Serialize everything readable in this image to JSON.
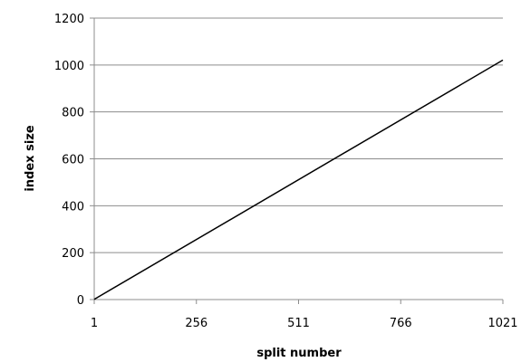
{
  "chart_data": {
    "type": "line",
    "title": "",
    "xlabel": "split number",
    "ylabel": "index size",
    "x_ticks": [
      1,
      256,
      511,
      766,
      1021
    ],
    "x_tick_labels": [
      "1",
      "256",
      "511",
      "766",
      "1021"
    ],
    "y_ticks": [
      0,
      200,
      400,
      600,
      800,
      1000,
      1200
    ],
    "y_tick_labels": [
      "0",
      "200",
      "400",
      "600",
      "800",
      "1000",
      "1200"
    ],
    "xlim": [
      1,
      1021
    ],
    "ylim": [
      0,
      1200
    ],
    "grid": "horizontal",
    "legend": "none",
    "series": [
      {
        "x": [
          1,
          1021
        ],
        "values": [
          1,
          1021
        ],
        "color": "#000000"
      }
    ]
  }
}
